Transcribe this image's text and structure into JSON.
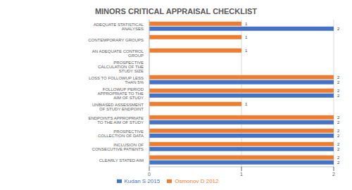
{
  "chart_data": {
    "type": "bar",
    "title": "MINORS CRITICAL APPRAISAL CHECKLIST",
    "orientation": "horizontal",
    "categories": [
      "ADEQUATE STATISTICAL ANALYSES",
      "CONTEMPORARY GROUPS",
      "AN ADEQUATE CONTROL GROUP",
      "PROSPECTIVE CALCULATION OF THE STUDY SIZE",
      "LOSS TO FOLLOWUP LESS THAN 5%",
      "FOLLOWUP PERIOD APPROPRIATE TO THE AIM OF STUDY",
      "UNBIASED ASSESSMENT OF STUDY ENDPOINT",
      "ENDPOINTS APPROPRIATE TO THE AIM OF STUDY",
      "PROSPECTIVE COLLECTION OF DATA",
      "INCLUSION OF CONSECUTIVE PATIENTS",
      "CLEARLY STATED AIM"
    ],
    "series": [
      {
        "name": "Osmonov D 2012",
        "color": "#ed7d31",
        "values": [
          1,
          1,
          1,
          0,
          2,
          2,
          1,
          2,
          2,
          2,
          2
        ]
      },
      {
        "name": "Kudan S 2015",
        "color": "#4472c4",
        "values": [
          2,
          0,
          0,
          0,
          2,
          2,
          0,
          2,
          2,
          2,
          2
        ]
      }
    ],
    "xlim": [
      0,
      2
    ],
    "xticks": [
      0,
      1,
      2
    ],
    "grid": true,
    "data_labels": true,
    "legend": "bottom"
  }
}
